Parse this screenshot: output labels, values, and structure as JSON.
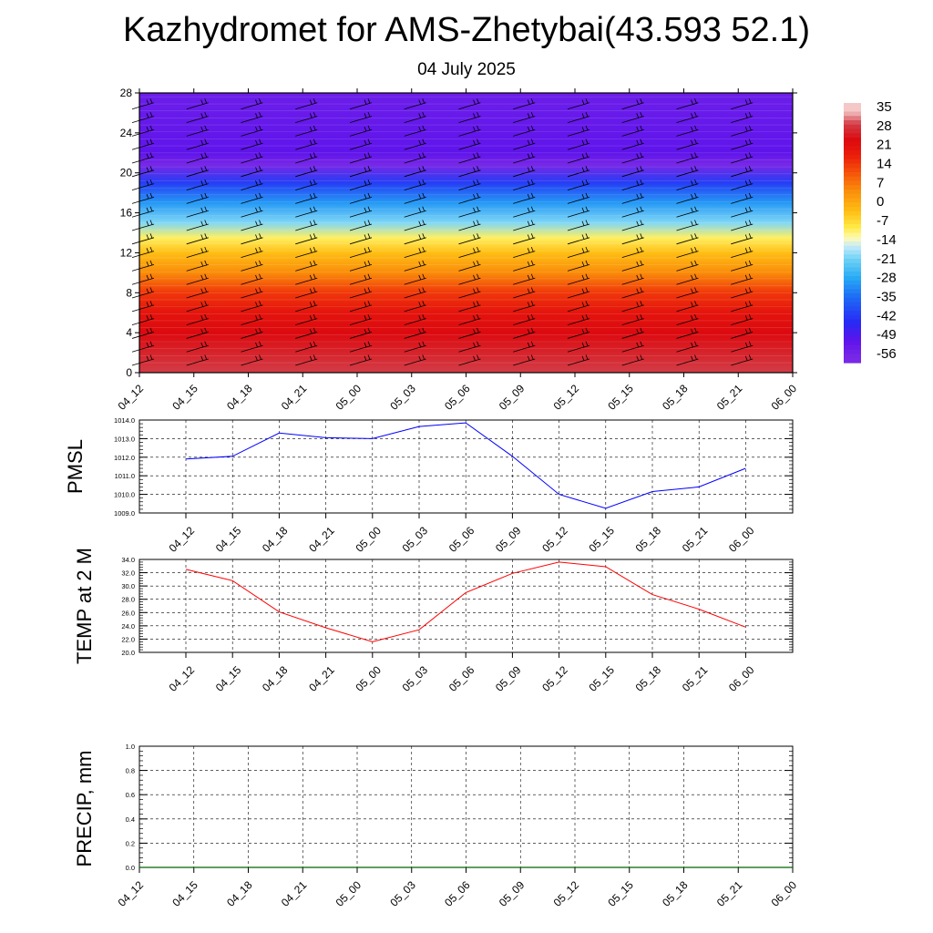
{
  "title": "Kazhydromet for AMS-Zhetybai(43.593 52.1)",
  "subtitle": "04 July 2025",
  "colors": {
    "pmsl_line": "#0000ff",
    "temp_line": "#ff0000",
    "precip_line": "#006400",
    "grid": "#000000",
    "frame": "#000000"
  },
  "chart_data": [
    {
      "type": "heatmap",
      "name": "vertical-profile",
      "x": [
        "04_12",
        "04_15",
        "04_18",
        "04_21",
        "05_00",
        "05_03",
        "05_06",
        "05_09",
        "05_12",
        "05_15",
        "05_18",
        "05_21",
        "06_00"
      ],
      "y_ticks": [
        0,
        4,
        8,
        12,
        16,
        20,
        24,
        28
      ],
      "ylim": [
        0,
        28
      ],
      "temperature_profile": [
        {
          "y": 0,
          "value": 30
        },
        {
          "y": 2,
          "value": 27
        },
        {
          "y": 4,
          "value": 24
        },
        {
          "y": 6,
          "value": 21
        },
        {
          "y": 8,
          "value": 15
        },
        {
          "y": 10,
          "value": 5
        },
        {
          "y": 12,
          "value": -3
        },
        {
          "y": 13.5,
          "value": -10
        },
        {
          "y": 15,
          "value": -20
        },
        {
          "y": 17,
          "value": -30
        },
        {
          "y": 19,
          "value": -42
        },
        {
          "y": 20.8,
          "value": -58
        },
        {
          "y": 22,
          "value": -52
        },
        {
          "y": 28,
          "value": -55
        }
      ],
      "colorbar_labels": [
        "35",
        "28",
        "21",
        "14",
        "7",
        "0",
        "-7",
        "-14",
        "-21",
        "-28",
        "-35",
        "-42",
        "-49",
        "-56"
      ],
      "colorbar_values": [
        35,
        28,
        21,
        14,
        7,
        0,
        -7,
        -14,
        -21,
        -28,
        -35,
        -42,
        -49,
        -56
      ],
      "wind_barbs": true
    },
    {
      "type": "line",
      "name": "pmsl",
      "ylabel": "PMSL",
      "x": [
        "04_12",
        "04_15",
        "04_18",
        "04_21",
        "05_00",
        "05_03",
        "05_06",
        "05_09",
        "05_12",
        "05_15",
        "05_18",
        "05_21",
        "06_00"
      ],
      "values": [
        1011.9,
        1012.05,
        1013.3,
        1013.05,
        1013.0,
        1013.65,
        1013.85,
        1012.05,
        1010.0,
        1009.25,
        1010.15,
        1010.4,
        1011.4
      ],
      "ylim": [
        1009.0,
        1014.0
      ],
      "y_ticks": [
        "1009.0",
        "1010.0",
        "1011.0",
        "1012.0",
        "1013.0",
        "1014.0"
      ],
      "grid": true
    },
    {
      "type": "line",
      "name": "temp-2m",
      "ylabel": "TEMP at 2 M",
      "x": [
        "04_12",
        "04_15",
        "04_18",
        "04_21",
        "05_00",
        "05_03",
        "05_06",
        "05_09",
        "05_12",
        "05_15",
        "05_18",
        "05_21",
        "06_00"
      ],
      "values": [
        32.5,
        30.8,
        26.1,
        23.7,
        21.6,
        23.4,
        29.0,
        31.9,
        33.6,
        32.9,
        28.7,
        26.5,
        23.8
      ],
      "ylim": [
        20.0,
        34.0
      ],
      "y_ticks": [
        "20.0",
        "22.0",
        "24.0",
        "26.0",
        "28.0",
        "30.0",
        "32.0",
        "34.0"
      ],
      "grid": true
    },
    {
      "type": "line",
      "name": "precip",
      "ylabel": "PRECIP, mm",
      "x": [
        "04_12",
        "04_15",
        "04_18",
        "04_21",
        "05_00",
        "05_03",
        "05_06",
        "05_09",
        "05_12",
        "05_15",
        "05_18",
        "05_21",
        "06_00"
      ],
      "values": [
        0,
        0,
        0,
        0,
        0,
        0,
        0,
        0,
        0,
        0,
        0,
        0,
        0
      ],
      "ylim": [
        0.0,
        1.0
      ],
      "y_ticks": [
        "0.0",
        "0.2",
        "0.4",
        "0.6",
        "0.8",
        "1.0"
      ],
      "grid": true
    }
  ]
}
